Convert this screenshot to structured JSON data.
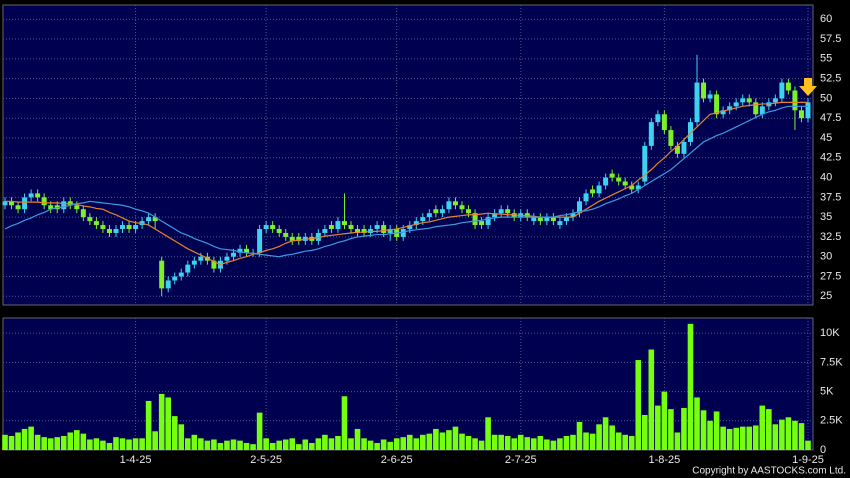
{
  "copyright": "Copyright by AASTOCKS.com Ltd.",
  "chart_data": [
    {
      "type": "candlestick",
      "up_color": "#3cd2f0",
      "down_color": "#7ef02a",
      "grid": true,
      "ylim": [
        23.9,
        61.8
      ],
      "yticks": [
        25,
        27.5,
        30,
        32.5,
        35,
        37.5,
        40,
        42.5,
        45,
        47.5,
        50,
        52.5,
        55,
        57.5,
        60
      ],
      "open": [
        36.5,
        37,
        36.5,
        36,
        37.5,
        38,
        37.5,
        36.5,
        36.5,
        36,
        37,
        36.5,
        36,
        35,
        34.5,
        34,
        33.5,
        33,
        33.5,
        34,
        33.5,
        34,
        34.5,
        35,
        29.5,
        26,
        27,
        27.5,
        28,
        29,
        29.5,
        30,
        29.5,
        28.5,
        29.5,
        30,
        30.5,
        31,
        30.5,
        30.5,
        33.5,
        34,
        33.5,
        33,
        32.5,
        32.5,
        32,
        32.5,
        32,
        33,
        34,
        33.5,
        34.5,
        34,
        33.5,
        33.5,
        33,
        33.5,
        34,
        33,
        33.5,
        32.5,
        33.5,
        34,
        34.5,
        35,
        36,
        35.5,
        36,
        37,
        36.5,
        36,
        35.5,
        34.5,
        34,
        35,
        35.5,
        36,
        35.5,
        35,
        35.5,
        34.5,
        35,
        34.5,
        35,
        34,
        34.5,
        35,
        35.5,
        37,
        38.5,
        38,
        39,
        40.5,
        40,
        39.5,
        39,
        38.5,
        39.5,
        44,
        47,
        48,
        46,
        44,
        43,
        44.5,
        47,
        52,
        50,
        50.5,
        48,
        48.5,
        49,
        49.5,
        50,
        49.5,
        48,
        49,
        49.5,
        50,
        52,
        51,
        48.5,
        47.5
      ],
      "high": [
        37.5,
        37.5,
        37,
        38,
        38.5,
        38.5,
        38,
        37,
        37,
        37.5,
        37.5,
        37,
        36.5,
        35.5,
        35,
        34.5,
        34,
        34,
        34.5,
        34.5,
        34.5,
        35,
        35.5,
        35.5,
        30,
        27.5,
        28,
        28.5,
        29.5,
        30,
        30.5,
        30.5,
        30,
        30,
        30.5,
        31,
        31.5,
        31.5,
        31,
        34,
        34.5,
        34.5,
        34,
        33.5,
        33,
        33,
        33,
        33,
        33.5,
        34,
        34.5,
        35,
        38,
        34.5,
        34,
        34,
        34,
        34.5,
        34.5,
        34,
        34,
        34,
        34.5,
        35,
        35.5,
        36,
        36.5,
        36.5,
        37.5,
        37.5,
        37,
        36.5,
        36,
        35,
        35.5,
        36,
        36.5,
        36.5,
        36,
        36,
        36,
        35.5,
        35.5,
        35.5,
        35.5,
        35,
        35.5,
        36,
        37.5,
        38.5,
        39,
        39.5,
        40.5,
        41,
        40.5,
        40,
        39.5,
        39.5,
        44.5,
        47.5,
        48.5,
        48.5,
        46.5,
        44.5,
        45,
        47.5,
        55.5,
        52.5,
        51,
        51,
        49,
        49.5,
        50,
        50.5,
        50.5,
        50,
        49.5,
        50,
        50.5,
        52.5,
        52.5,
        51.5,
        49,
        50
      ],
      "low": [
        36,
        36,
        35.5,
        35.5,
        37,
        37,
        36,
        35.5,
        35.5,
        35.5,
        36,
        35.5,
        34.5,
        34,
        33.5,
        33,
        32.5,
        32.5,
        33,
        33,
        33,
        33.5,
        34,
        33.5,
        25,
        25.5,
        26.5,
        27,
        27.5,
        28.5,
        29,
        29,
        28,
        28,
        29,
        29.5,
        30,
        30,
        30,
        30,
        33,
        33,
        32.5,
        32,
        31.5,
        31.5,
        31.5,
        31.5,
        31.5,
        32.5,
        33,
        33,
        33.5,
        33,
        32.5,
        32.5,
        32.5,
        33,
        32.5,
        32,
        32,
        32,
        33,
        33.5,
        34,
        34.5,
        35,
        35,
        35.5,
        36,
        35.5,
        35,
        33.5,
        33.5,
        33.5,
        34.5,
        35,
        35,
        34.5,
        34.5,
        34.5,
        34,
        34,
        34,
        34,
        33.5,
        34,
        34.5,
        35,
        36.5,
        37.5,
        37.5,
        38.5,
        39.5,
        39,
        38.5,
        38,
        38,
        39,
        43.5,
        46.5,
        45.5,
        43.5,
        42.5,
        42.5,
        44,
        46.5,
        49.5,
        49.5,
        47.5,
        47.5,
        48,
        48.5,
        49,
        49,
        47.5,
        47.5,
        48.5,
        49,
        49.5,
        50.5,
        46,
        47,
        47
      ],
      "close": [
        37,
        36.5,
        36,
        37.5,
        38,
        37.5,
        36.5,
        36,
        36,
        37,
        36.5,
        36,
        35,
        34.5,
        34,
        33.5,
        33,
        33.5,
        34,
        33.5,
        34,
        34.5,
        35,
        34.5,
        26,
        27,
        27.5,
        28,
        29,
        29.5,
        30,
        29.5,
        28.5,
        29.5,
        30,
        30.5,
        31,
        30.5,
        30.5,
        33.5,
        34,
        33.5,
        33,
        32.5,
        32,
        32,
        32.5,
        32,
        33,
        33.5,
        33.5,
        34.5,
        34,
        33.5,
        33,
        33,
        33.5,
        34,
        33,
        33.5,
        32.5,
        33.5,
        34,
        34.5,
        35,
        35.5,
        35.5,
        36,
        37,
        36.5,
        36,
        35.5,
        34,
        34,
        35,
        35.5,
        36,
        35.5,
        35,
        35.5,
        35,
        35,
        34.5,
        35,
        34.5,
        34.5,
        35,
        35.5,
        37,
        38,
        38,
        39,
        40,
        40,
        39.5,
        39,
        38.5,
        39,
        44,
        47,
        48,
        46,
        44,
        43,
        44.5,
        47,
        52,
        50,
        50.5,
        48,
        48.5,
        49,
        49.5,
        50,
        49.5,
        48,
        49,
        49.5,
        50,
        52,
        51,
        48.5,
        47.5,
        49.5
      ],
      "series": [
        {
          "color": "#e8822a",
          "values": [
            37,
            37,
            36.9,
            36.9,
            36.9,
            36.9,
            36.8,
            36.8,
            36.8,
            36.7,
            36.7,
            36.6,
            36.4,
            36.3,
            36.1,
            36,
            35.6,
            35.3,
            34.9,
            34.5,
            34.3,
            34.2,
            34,
            33.5,
            33,
            32.5,
            32,
            31.5,
            31,
            30.6,
            30.2,
            29.8,
            29.4,
            29,
            29.3,
            29.5,
            29.8,
            30,
            30.3,
            30.5,
            30.8,
            31,
            31.3,
            31.7,
            32,
            32.1,
            32.2,
            32.3,
            32.4,
            32.6,
            32.7,
            32.8,
            32.9,
            33,
            33.1,
            33.1,
            33.2,
            33.2,
            33.3,
            33.4,
            33.5,
            33.7,
            33.9,
            34.1,
            34.3,
            34.4,
            34.6,
            34.8,
            35,
            35.1,
            35.2,
            35.3,
            35.3,
            35.4,
            35.5,
            35.4,
            35.4,
            35.3,
            35.3,
            35.2,
            35.2,
            35.1,
            35,
            35,
            35,
            35,
            35,
            35,
            35.5,
            36,
            36.5,
            37,
            37.4,
            37.8,
            38.2,
            38.6,
            39,
            39.7,
            40.3,
            41,
            41.8,
            42.5,
            43.3,
            44,
            44.8,
            45.6,
            46.4,
            47.2,
            48,
            48.2,
            48.4,
            48.6,
            48.8,
            49,
            49.1,
            49.2,
            49.3,
            49.3,
            49.4,
            49.5,
            49.5,
            49.5,
            49.5,
            49.5
          ]
        },
        {
          "color": "#3b9be0",
          "values": [
            33.5,
            33.9,
            34.2,
            34.6,
            34.9,
            35.3,
            35.6,
            36,
            36.2,
            36.3,
            36.5,
            36.7,
            36.8,
            37,
            36.9,
            36.8,
            36.7,
            36.6,
            36.5,
            36.3,
            36,
            35.8,
            35.5,
            35,
            34.5,
            34,
            33.5,
            33,
            32.7,
            32.3,
            32,
            31.7,
            31.3,
            31,
            30.9,
            30.8,
            30.6,
            30.5,
            30.4,
            30.3,
            30.2,
            30.1,
            30,
            30.2,
            30.3,
            30.5,
            30.7,
            30.8,
            31,
            31.3,
            31.5,
            31.8,
            32,
            32.3,
            32.5,
            32.6,
            32.7,
            32.8,
            32.8,
            32.9,
            33,
            33.1,
            33.3,
            33.4,
            33.5,
            33.6,
            33.8,
            33.9,
            34,
            34.1,
            34.3,
            34.4,
            34.5,
            34.6,
            34.8,
            34.9,
            35,
            35,
            35,
            35,
            35,
            35,
            35,
            35,
            35,
            35.2,
            35.3,
            35.5,
            35.7,
            35.8,
            36,
            36.3,
            36.7,
            37,
            37.3,
            37.7,
            38,
            38.5,
            39,
            39.5,
            40,
            40.5,
            41,
            41.7,
            42.4,
            43.1,
            43.8,
            44.5,
            44.9,
            45.3,
            45.6,
            46,
            46.4,
            46.8,
            47.2,
            47.6,
            48,
            48.3,
            48.5,
            48.8,
            49,
            49,
            49,
            49
          ]
        }
      ]
    },
    {
      "type": "bar",
      "color": "#77ff11",
      "grid": true,
      "ylim": [
        0,
        11300
      ],
      "yticks": [
        0,
        {
          "value": 2500,
          "label": "2.5K"
        },
        {
          "value": 5000,
          "label": "5K"
        },
        {
          "value": 7500,
          "label": "7.5K"
        },
        {
          "value": 10000,
          "label": "10K"
        }
      ],
      "categories": [
        null,
        null,
        null,
        null,
        null,
        null,
        null,
        null,
        null,
        null,
        null,
        null,
        null,
        null,
        null,
        null,
        null,
        null,
        null,
        null,
        "1-4-25",
        null,
        null,
        null,
        null,
        null,
        null,
        null,
        null,
        null,
        null,
        null,
        null,
        null,
        null,
        null,
        null,
        null,
        null,
        null,
        "2-5-25",
        null,
        null,
        null,
        null,
        null,
        null,
        null,
        null,
        null,
        null,
        null,
        null,
        null,
        null,
        null,
        null,
        null,
        null,
        null,
        "2-6-25",
        null,
        null,
        null,
        null,
        null,
        null,
        null,
        null,
        null,
        null,
        null,
        null,
        null,
        null,
        null,
        null,
        null,
        null,
        "2-7-25",
        null,
        null,
        null,
        null,
        null,
        null,
        null,
        null,
        null,
        null,
        null,
        null,
        null,
        null,
        null,
        null,
        null,
        null,
        null,
        null,
        null,
        "1-8-25",
        null,
        null,
        null,
        null,
        null,
        null,
        null,
        null,
        null,
        null,
        null,
        null,
        null,
        null,
        null,
        null,
        null,
        null,
        null,
        null,
        null,
        "1-9-25"
      ],
      "values": [
        1300,
        1200,
        1500,
        1800,
        2000,
        1300,
        1100,
        1000,
        1100,
        1200,
        1500,
        1700,
        1400,
        900,
        1000,
        800,
        600,
        1100,
        1000,
        900,
        1000,
        1000,
        4200,
        1600,
        4800,
        4500,
        2900,
        2200,
        1000,
        1300,
        1000,
        800,
        900,
        600,
        800,
        900,
        800,
        600,
        500,
        3200,
        1000,
        600,
        800,
        900,
        1000,
        500,
        900,
        600,
        1000,
        1300,
        1000,
        1200,
        4600,
        1000,
        1800,
        1000,
        800,
        600,
        900,
        700,
        1000,
        1100,
        1300,
        1000,
        1300,
        1400,
        1800,
        1500,
        1700,
        2000,
        1400,
        1200,
        1000,
        800,
        2800,
        1300,
        1300,
        1200,
        1000,
        1300,
        1100,
        1000,
        1200,
        900,
        800,
        1000,
        1200,
        1300,
        2400,
        1500,
        1400,
        2200,
        2800,
        2100,
        1500,
        1300,
        1200,
        7700,
        3000,
        8600,
        3800,
        5000,
        3500,
        1500,
        3600,
        10800,
        4500,
        3400,
        2500,
        3300,
        2000,
        1800,
        1900,
        2000,
        2000,
        2100,
        3800,
        3500,
        2200,
        2600,
        2800,
        2500,
        2300,
        800
      ]
    }
  ]
}
